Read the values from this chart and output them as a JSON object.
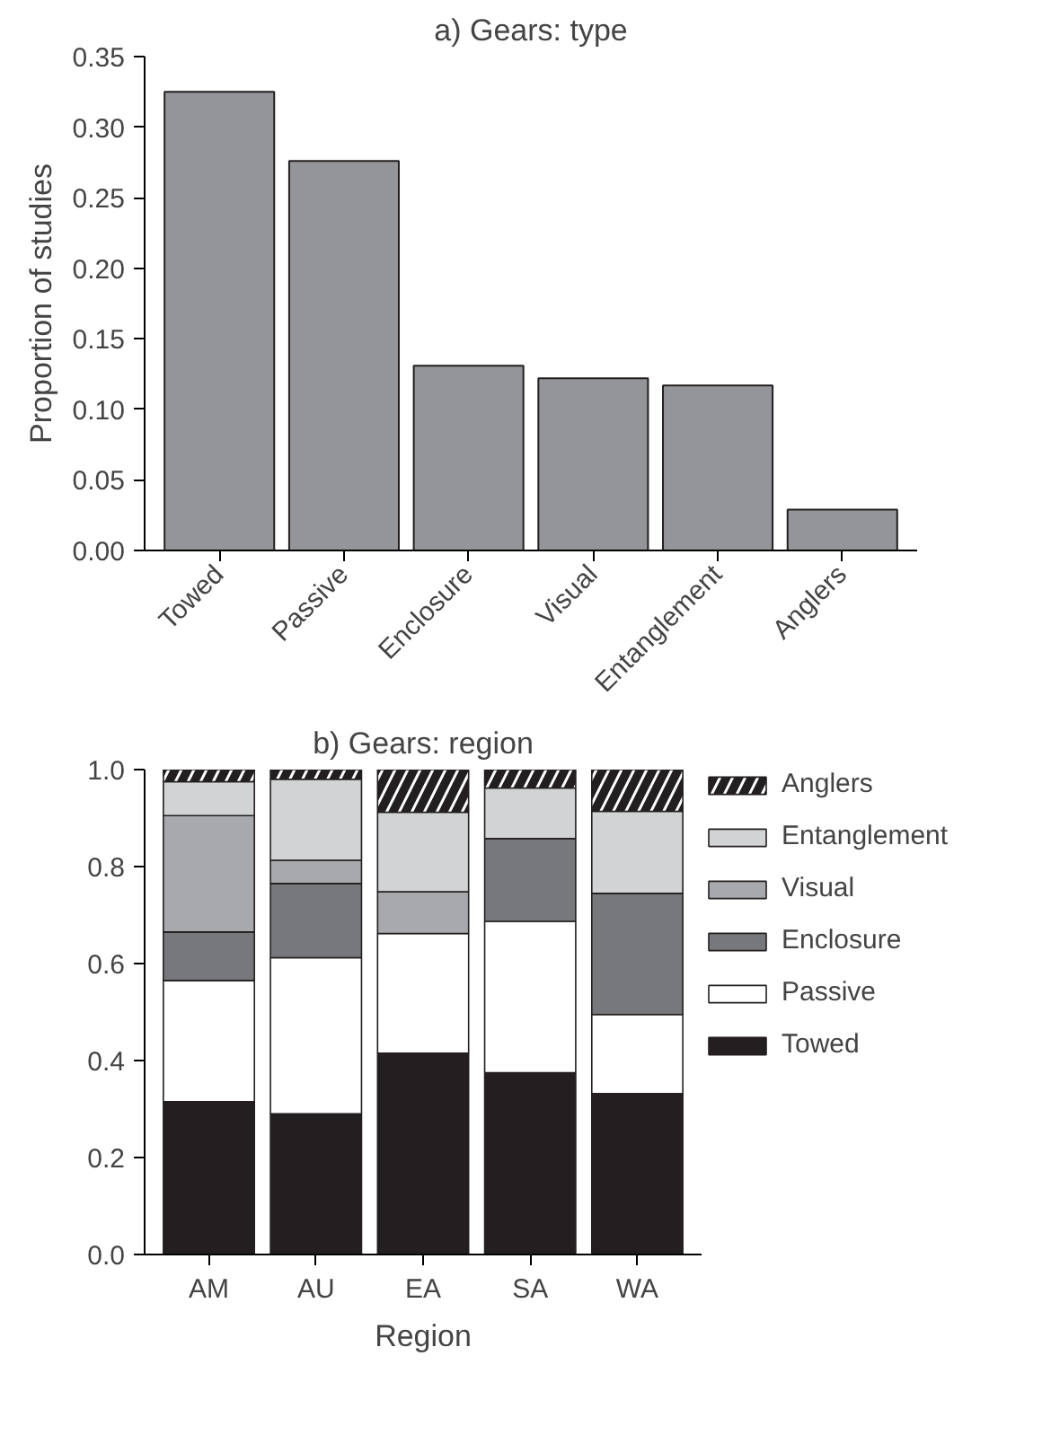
{
  "chart_data": [
    {
      "type": "bar",
      "title": "a) Gears: type",
      "ylabel": "Proportion of studies",
      "categories": [
        "Towed",
        "Passive",
        "Enclosure",
        "Visual",
        "Entanglement",
        "Anglers"
      ],
      "values": [
        0.325,
        0.276,
        0.131,
        0.122,
        0.117,
        0.029
      ],
      "color": "#939598",
      "ylim": [
        0,
        0.35
      ],
      "yticks": [
        {
          "value": 0,
          "label": "0.00"
        },
        0.05,
        {
          "value": 0.1,
          "label": "0.10"
        },
        0.15,
        {
          "value": 0.2,
          "label": "0.20"
        },
        0.25,
        {
          "value": 0.3,
          "label": "0.30"
        },
        0.35
      ],
      "grid": false
    },
    {
      "type": "bar",
      "title": "b) Gears: region",
      "xlabel": "Region",
      "categories": [
        "AM",
        "AU",
        "EA",
        "SA",
        "WA"
      ],
      "stacked": true,
      "ylim": [
        0,
        1.0
      ],
      "yticks": [
        {
          "value": 0,
          "label": "0.0"
        },
        0.2,
        0.4,
        0.6,
        0.8,
        {
          "value": 1,
          "label": "1.0"
        }
      ],
      "grid": false,
      "legend": "right",
      "series": [
        {
          "name": "Towed",
          "color": "#231f20",
          "values": [
            0.315,
            0.29,
            0.415,
            0.375,
            0.332
          ]
        },
        {
          "name": "Passive",
          "color": "#ffffff",
          "values": [
            0.25,
            0.322,
            0.247,
            0.312,
            0.163
          ]
        },
        {
          "name": "Enclosure",
          "color": "#77787b",
          "values": [
            0.1,
            0.153,
            0,
            0.171,
            0.25
          ]
        },
        {
          "name": "Visual",
          "color": "#a7a9ac",
          "values": [
            0.24,
            0.048,
            0.086,
            0,
            0
          ]
        },
        {
          "name": "Entanglement",
          "color": "#d1d3d4",
          "values": [
            0.07,
            0.167,
            0.164,
            0.104,
            0.169
          ]
        },
        {
          "name": "Anglers",
          "color": "#231f20",
          "values": [
            0.025,
            0.02,
            0.088,
            0.038,
            0.086
          ]
        }
      ]
    }
  ]
}
